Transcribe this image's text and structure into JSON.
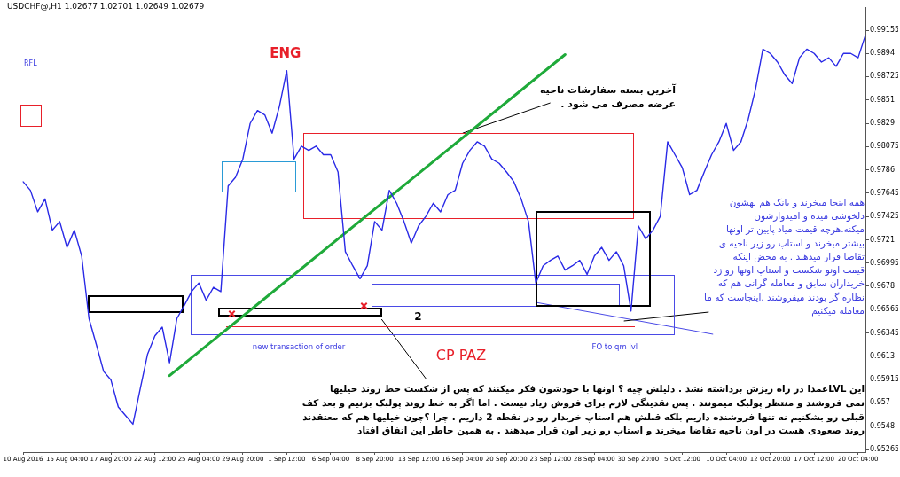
{
  "chart_data": {
    "type": "line",
    "title": "USDCHF@,H1  1.02677 1.02701 1.02649 1.02679",
    "categories": [
      "10 Aug 2016",
      null,
      null,
      null,
      null,
      null,
      "15 Aug 04:00",
      null,
      null,
      null,
      null,
      null,
      "17 Aug 20:00",
      null,
      null,
      null,
      null,
      null,
      "22 Aug 12:00",
      null,
      null,
      null,
      null,
      null,
      "25 Aug 04:00",
      null,
      null,
      null,
      null,
      null,
      "29 Aug 20:00",
      null,
      null,
      null,
      null,
      null,
      "1 Sep 12:00",
      null,
      null,
      null,
      null,
      null,
      "6 Sep 04:00",
      null,
      null,
      null,
      null,
      null,
      "8 Sep 20:00",
      null,
      null,
      null,
      null,
      null,
      "13 Sep 12:00",
      null,
      null,
      null,
      null,
      null,
      "16 Sep 04:00",
      null,
      null,
      null,
      null,
      null,
      "20 Sep 20:00",
      null,
      null,
      null,
      null,
      null,
      "23 Sep 12:00",
      null,
      null,
      null,
      null,
      null,
      "28 Sep 04:00",
      null,
      null,
      null,
      null,
      null,
      "30 Sep 20:00",
      null,
      null,
      null,
      null,
      null,
      "5 Oct 12:00",
      null,
      null,
      null,
      null,
      null,
      "10 Oct 04:00",
      null,
      null,
      null,
      null,
      null,
      "12 Oct 20:00",
      null,
      null,
      null,
      null,
      null,
      "17 Oct 12:00",
      null,
      null,
      null,
      null,
      null,
      "20 Oct 04:00",
      null
    ],
    "series": [
      {
        "color": "#2a2ae6",
        "values": [
          0.9775,
          0.9767,
          0.9747,
          0.9759,
          0.973,
          0.9738,
          0.9714,
          0.973,
          0.9706,
          0.9648,
          0.9624,
          0.9599,
          0.9591,
          0.9566,
          0.9558,
          0.955,
          0.9583,
          0.9615,
          0.9632,
          0.964,
          0.9607,
          0.9648,
          0.966,
          0.9673,
          0.9681,
          0.9665,
          0.9677,
          0.9673,
          0.9771,
          0.9779,
          0.9796,
          0.9829,
          0.9841,
          0.9837,
          0.982,
          0.9845,
          0.9878,
          0.9796,
          0.9808,
          0.9804,
          0.9808,
          0.98,
          0.98,
          0.9784,
          0.971,
          0.9697,
          0.9685,
          0.9697,
          0.9738,
          0.973,
          0.9767,
          0.9755,
          0.9738,
          0.9718,
          0.9734,
          0.9743,
          0.9755,
          0.9747,
          0.9763,
          0.9767,
          0.9792,
          0.9804,
          0.9812,
          0.9808,
          0.9796,
          0.9792,
          0.9784,
          0.9775,
          0.9759,
          0.9738,
          0.9681,
          0.9697,
          0.9702,
          0.9706,
          0.9693,
          0.9697,
          0.9702,
          0.9689,
          0.9706,
          0.9714,
          0.9702,
          0.971,
          0.9697,
          0.9655,
          0.9734,
          0.9722,
          0.973,
          0.9743,
          0.9812,
          0.98,
          0.9788,
          0.9763,
          0.9767,
          0.9784,
          0.98,
          0.9812,
          0.9829,
          0.9804,
          0.9812,
          0.9833,
          0.9861,
          0.9898,
          0.9894,
          0.9886,
          0.9874,
          0.9866,
          0.989,
          0.9898,
          0.9894,
          0.9886,
          0.989,
          0.9882,
          0.9894,
          0.9894,
          0.989,
          0.9911
        ]
      },
      {
        "type": "line",
        "color": "#1faa3a",
        "values": [
          null,
          null,
          null,
          null,
          null,
          null,
          null,
          null,
          null,
          null,
          null,
          null,
          null,
          null,
          null,
          null,
          null,
          null,
          null,
          null,
          0.9595,
          null,
          null,
          null,
          null,
          null,
          null,
          null,
          null,
          null,
          null,
          null,
          null,
          null,
          null,
          null,
          null,
          null,
          null,
          null,
          null,
          null,
          null,
          null,
          null,
          null,
          null,
          null,
          null,
          null,
          null,
          null,
          null,
          null,
          null,
          null,
          null,
          null,
          null,
          null,
          null,
          null,
          null,
          null,
          null,
          null,
          null,
          null,
          null,
          null,
          null,
          null,
          null,
          null,
          0.9893,
          null,
          null,
          null,
          null,
          null,
          null,
          null,
          null,
          null,
          null,
          null,
          null,
          null,
          null,
          null,
          null,
          null,
          null,
          null,
          null,
          null,
          null,
          null,
          null,
          null,
          null,
          null,
          null,
          null,
          null,
          null,
          null,
          null,
          null,
          null,
          null,
          null,
          null,
          null,
          null,
          null
        ]
      }
    ],
    "ylim": [
      0.9524,
      0.9937
    ],
    "yticks": [
      0.99155,
      0.9894,
      0.98725,
      0.9851,
      0.9829,
      0.98075,
      0.9786,
      0.97645,
      0.97425,
      0.9721,
      0.96995,
      0.9678,
      0.96565,
      0.96345,
      0.9613,
      0.95915,
      0.957,
      0.9548,
      0.95265
    ],
    "grid": false,
    "legend": false,
    "marker": "none",
    "line_style": "solid",
    "annotations": [
      "ENG",
      "RFL",
      "2",
      "new transaction of order",
      "CP PAZ",
      "FO to qm lvl",
      {
        "text": "آخرین بسته سفارشات ناحیه\nعرضه مصرف می شود .",
        "x": "16 Sep 04:00",
        "y": 0.982
      },
      "همه اینجا میخرند و بانک هم بهشون\nدلخوشی میده و امیدوارشون\nمیکنه.هرچه قیمت میاد پایین تر اونها\nبیشتر میخرند و استاپ رو زیر ناحیه ی\nتقاضا قرار میدهند . به محض اینکه\nقیمت اونو شکست و استاپ اونها رو زد\nخریداران سابق و معامله گرانی هم که\nنظاره گر بودند میفروشند .اینجاست که ما\nمعامله میکنیم",
      "این LVLعمدا در راه ریزش برداشته نشد . دلیلش چیه ؟ اونها با خودشون فکر میکنند که پس از شکست خط روند خیلیها\nنمی فروشند و منتظر پولبک میمونند . پس نقدینگی لازم برای فروش زیاد نیست . اما اگر به خط روند پولبک بزنیم و بعد کف\nقبلی رو بشکنیم نه تنها فروشنده داریم بلکه قبلش هم استاپ خریدار رو در نقطه 2 داریم . چرا ؟چون خیلیها هم که معتقدند\nروند صعودی هست در اون ناحیه تقاضا میخرند و استاپ رو زیر اون قرار میدهند . به همین خاطر این اتفاق افتاد"
    ]
  }
}
